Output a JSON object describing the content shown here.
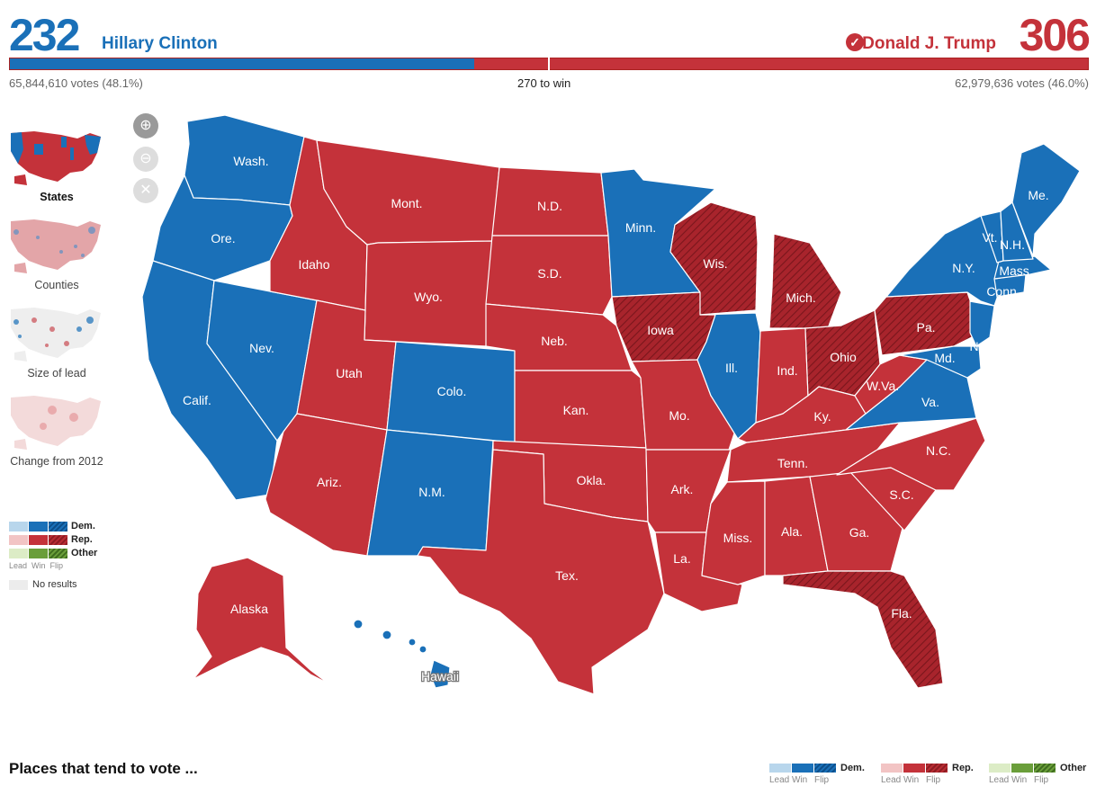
{
  "header": {
    "dem_count": "232",
    "dem_name": "Hillary Clinton",
    "rep_count": "306",
    "rep_name": "Donald J. Trump",
    "dem_votes": "65,844,610 votes (48.1%)",
    "rep_votes": "62,979,636 votes (46.0%)",
    "to_win": "270 to win",
    "dem_share_of_538": 0.431,
    "winner_icon": "check-circle-icon"
  },
  "colors": {
    "dem": "#1a70b8",
    "rep": "#c4323a",
    "dem_lead": "#b8d6ec",
    "rep_lead": "#f2c4c4",
    "other_lead": "#dcecc6",
    "other_win": "#6a9e3a",
    "no_results": "#ececec"
  },
  "sidebar": {
    "views": [
      {
        "label": "States",
        "active": true
      },
      {
        "label": "Counties",
        "active": false
      },
      {
        "label": "Size of lead",
        "active": false
      },
      {
        "label": "Change from 2012",
        "active": false
      }
    ],
    "zoom": {
      "in_icon": "zoom-in-icon",
      "out_icon": "zoom-out-icon",
      "reset_icon": "close-icon"
    }
  },
  "legend": {
    "dem": "Dem.",
    "rep": "Rep.",
    "other": "Other",
    "lead": "Lead",
    "win": "Win",
    "flip": "Flip",
    "no_results": "No results"
  },
  "map": {
    "states": {
      "wash": "Wash.",
      "ore": "Ore.",
      "calif": "Calif.",
      "nev": "Nev.",
      "idaho": "Idaho",
      "mont": "Mont.",
      "wyo": "Wyo.",
      "utah": "Utah",
      "colo": "Colo.",
      "ariz": "Ariz.",
      "nm": "N.M.",
      "nd": "N.D.",
      "sd": "S.D.",
      "neb": "Neb.",
      "kan": "Kan.",
      "okla": "Okla.",
      "tex": "Tex.",
      "minn": "Minn.",
      "iowa": "Iowa",
      "mo": "Mo.",
      "ark": "Ark.",
      "la": "La.",
      "wis": "Wis.",
      "ill": "Ill.",
      "mich": "Mich.",
      "ind": "Ind.",
      "ohio": "Ohio",
      "ky": "Ky.",
      "tenn": "Tenn.",
      "miss": "Miss.",
      "ala": "Ala.",
      "ga": "Ga.",
      "fla": "Fla.",
      "sc": "S.C.",
      "nc": "N.C.",
      "va": "Va.",
      "wva": "W.Va.",
      "pa": "Pa.",
      "ny": "N.Y.",
      "nj": "N.J.",
      "md": "Md.",
      "conn": "Conn.",
      "mass": "Mass.",
      "vt": "Vt.",
      "nh": "N.H.",
      "me": "Me.",
      "alaska": "Alaska",
      "hawaii": "Hawaii"
    }
  },
  "footer": {
    "places_title": "Places that tend to vote ..."
  }
}
